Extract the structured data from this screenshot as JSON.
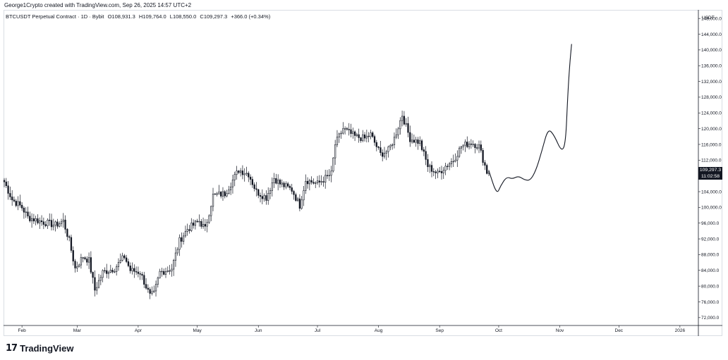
{
  "attribution": "George1Crypto created with TradingView.com, Sep 26, 2025 14:57 UTC+2",
  "legend": {
    "symbol": "BTCUSDT Perpetual Contract · 1D · Bybit",
    "open": "O108,931.3",
    "high": "H109,764.0",
    "low": "L108,550.0",
    "close": "C109,297.3",
    "change": "+366.0 (+0.34%)"
  },
  "currency_label": "USDT",
  "last_price": {
    "value": "109,297.3",
    "countdown": "11:02:58"
  },
  "footer_brand": "TradingView",
  "colors": {
    "candle": "#131722",
    "grid": "#e0e3eb",
    "axis_text": "#131722",
    "price_label_bg": "#131722"
  },
  "chart_data": {
    "type": "candlestick",
    "title": "BTCUSDT Perpetual Contract · 1D · Bybit",
    "x_axis": {
      "tick_labels": [
        "Feb",
        "Mar",
        "Apr",
        "May",
        "Jun",
        "Jul",
        "Aug",
        "Sep",
        "Oct",
        "Nov",
        "Dec",
        "2026"
      ],
      "range": [
        "2025-01-23",
        "2026-01-10"
      ]
    },
    "y_axis": {
      "position": "right",
      "label": "USDT",
      "range": [
        70000,
        150000
      ],
      "tick_values": [
        72000,
        76000,
        80000,
        84000,
        88000,
        92000,
        96000,
        100000,
        104000,
        108000,
        112000,
        116000,
        120000,
        124000,
        128000,
        132000,
        136000,
        140000,
        144000,
        148000
      ],
      "tick_labels": [
        "72,000.0",
        "76,000.0",
        "80,000.0",
        "84,000.0",
        "88,000.0",
        "92,000.0",
        "96,000.0",
        "100,000.0",
        "104,000.0",
        "108,000.0",
        "112,000.0",
        "116,000.0",
        "120,000.0",
        "124,000.0",
        "128,000.0",
        "132,000.0",
        "136,000.0",
        "140,000.0",
        "144,000.0",
        "148,000.0"
      ]
    },
    "grid": false,
    "price_path": [
      [
        "2025-01-23",
        106500
      ],
      [
        "2025-01-27",
        102000
      ],
      [
        "2025-02-01",
        100000
      ],
      [
        "2025-02-04",
        97500
      ],
      [
        "2025-02-10",
        96500
      ],
      [
        "2025-02-18",
        95500
      ],
      [
        "2025-02-22",
        96500
      ],
      [
        "2025-02-25",
        91500
      ],
      [
        "2025-02-28",
        84500
      ],
      [
        "2025-03-04",
        87500
      ],
      [
        "2025-03-07",
        86500
      ],
      [
        "2025-03-10",
        79000
      ],
      [
        "2025-03-14",
        83500
      ],
      [
        "2025-03-20",
        84500
      ],
      [
        "2025-03-25",
        87500
      ],
      [
        "2025-03-28",
        84000
      ],
      [
        "2025-04-02",
        83500
      ],
      [
        "2025-04-07",
        77500
      ],
      [
        "2025-04-09",
        78000
      ],
      [
        "2025-04-12",
        83500
      ],
      [
        "2025-04-18",
        84500
      ],
      [
        "2025-04-22",
        91500
      ],
      [
        "2025-04-26",
        94500
      ],
      [
        "2025-05-02",
        96500
      ],
      [
        "2025-05-05",
        94500
      ],
      [
        "2025-05-09",
        103000
      ],
      [
        "2025-05-15",
        103500
      ],
      [
        "2025-05-22",
        109500
      ],
      [
        "2025-05-27",
        108500
      ],
      [
        "2025-05-31",
        104000
      ],
      [
        "2025-06-05",
        102500
      ],
      [
        "2025-06-09",
        107500
      ],
      [
        "2025-06-12",
        106000
      ],
      [
        "2025-06-18",
        104500
      ],
      [
        "2025-06-22",
        100500
      ],
      [
        "2025-06-25",
        107000
      ],
      [
        "2025-07-01",
        106000
      ],
      [
        "2025-07-08",
        108500
      ],
      [
        "2025-07-10",
        116000
      ],
      [
        "2025-07-14",
        120000
      ],
      [
        "2025-07-20",
        118000
      ],
      [
        "2025-07-25",
        117500
      ],
      [
        "2025-07-28",
        118500
      ],
      [
        "2025-08-02",
        113500
      ],
      [
        "2025-08-06",
        114500
      ],
      [
        "2025-08-09",
        117500
      ],
      [
        "2025-08-13",
        123500
      ],
      [
        "2025-08-17",
        117500
      ],
      [
        "2025-08-22",
        116500
      ],
      [
        "2025-08-26",
        110500
      ],
      [
        "2025-08-31",
        108500
      ],
      [
        "2025-09-04",
        110500
      ],
      [
        "2025-09-08",
        112000
      ],
      [
        "2025-09-12",
        115500
      ],
      [
        "2025-09-17",
        116500
      ],
      [
        "2025-09-21",
        115500
      ],
      [
        "2025-09-25",
        109000
      ],
      [
        "2025-09-26",
        109297
      ]
    ],
    "projection_path": [
      [
        "2025-09-26",
        109300
      ],
      [
        "2025-09-30",
        103200
      ],
      [
        "2025-10-02",
        105500
      ],
      [
        "2025-10-05",
        107800
      ],
      [
        "2025-10-08",
        107200
      ],
      [
        "2025-10-11",
        108000
      ],
      [
        "2025-10-14",
        107000
      ],
      [
        "2025-10-17",
        106800
      ],
      [
        "2025-10-20",
        109500
      ],
      [
        "2025-10-23",
        114500
      ],
      [
        "2025-10-26",
        120000
      ],
      [
        "2025-10-29",
        118500
      ],
      [
        "2025-11-02",
        114000
      ],
      [
        "2025-11-04",
        116500
      ],
      [
        "2025-11-05",
        128000
      ],
      [
        "2025-11-06",
        136000
      ],
      [
        "2025-11-07",
        141500
      ]
    ]
  }
}
